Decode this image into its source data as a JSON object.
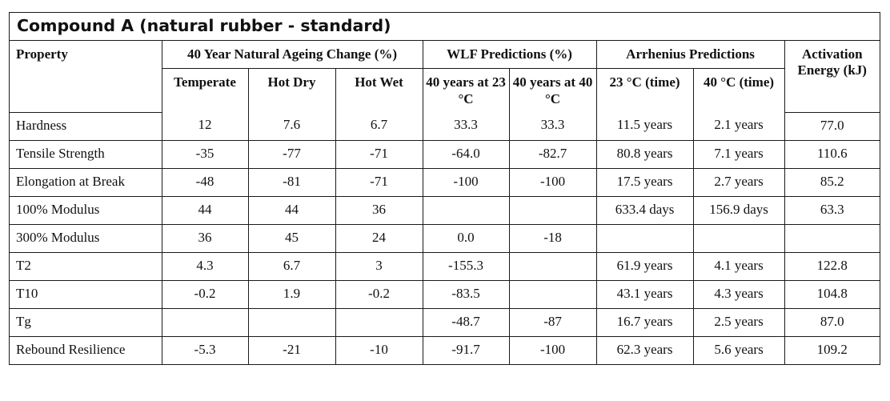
{
  "title": "Compound A (natural rubber - standard)",
  "headers": {
    "property": "Property",
    "natural_ageing": "40 Year Natural Ageing Change (%)",
    "wlf": "WLF Predictions (%)",
    "arrhenius": "Arrhenius Predictions",
    "activation": "Activation Energy (kJ)",
    "sub": {
      "temperate": "Temperate",
      "hot_dry": "Hot Dry",
      "hot_wet": "Hot Wet",
      "wlf_23": "40 years at 23 °C",
      "wlf_40": "40 years at 40 °C",
      "arr_23": "23 °C (time)",
      "arr_40": "40 °C (time)"
    }
  },
  "rows": [
    {
      "property": "Hardness",
      "temperate": "12",
      "hot_dry": "7.6",
      "hot_wet": "6.7",
      "wlf_23": "33.3",
      "wlf_40": "33.3",
      "arr_23": "11.5 years",
      "arr_40": "2.1 years",
      "activation": "77.0"
    },
    {
      "property": "Tensile Strength",
      "temperate": "-35",
      "hot_dry": "-77",
      "hot_wet": "-71",
      "wlf_23": "-64.0",
      "wlf_40": "-82.7",
      "arr_23": "80.8 years",
      "arr_40": "7.1 years",
      "activation": "110.6"
    },
    {
      "property": "Elongation at Break",
      "temperate": "-48",
      "hot_dry": "-81",
      "hot_wet": "-71",
      "wlf_23": "-100",
      "wlf_40": "-100",
      "arr_23": "17.5 years",
      "arr_40": "2.7 years",
      "activation": "85.2"
    },
    {
      "property": "100% Modulus",
      "temperate": "44",
      "hot_dry": "44",
      "hot_wet": "36",
      "wlf_23": "",
      "wlf_40": "",
      "arr_23": "633.4 days",
      "arr_40": "156.9 days",
      "activation": "63.3"
    },
    {
      "property": "300% Modulus",
      "temperate": "36",
      "hot_dry": "45",
      "hot_wet": "24",
      "wlf_23": "0.0",
      "wlf_40": "-18",
      "arr_23": "",
      "arr_40": "",
      "activation": ""
    },
    {
      "property": "T2",
      "temperate": "4.3",
      "hot_dry": "6.7",
      "hot_wet": "3",
      "wlf_23": "-155.3",
      "wlf_40": "",
      "arr_23": "61.9 years",
      "arr_40": "4.1 years",
      "activation": "122.8"
    },
    {
      "property": "T10",
      "temperate": "-0.2",
      "hot_dry": "1.9",
      "hot_wet": "-0.2",
      "wlf_23": "-83.5",
      "wlf_40": "",
      "arr_23": "43.1 years",
      "arr_40": "4.3 years",
      "activation": "104.8"
    },
    {
      "property": "Tg",
      "temperate": "",
      "hot_dry": "",
      "hot_wet": "",
      "wlf_23": "-48.7",
      "wlf_40": "-87",
      "arr_23": "16.7 years",
      "arr_40": "2.5 years",
      "activation": "87.0"
    },
    {
      "property": "Rebound Resilience",
      "temperate": "-5.3",
      "hot_dry": "-21",
      "hot_wet": "-10",
      "wlf_23": "-91.7",
      "wlf_40": "-100",
      "arr_23": "62.3 years",
      "arr_40": "5.6 years",
      "activation": "109.2"
    }
  ]
}
